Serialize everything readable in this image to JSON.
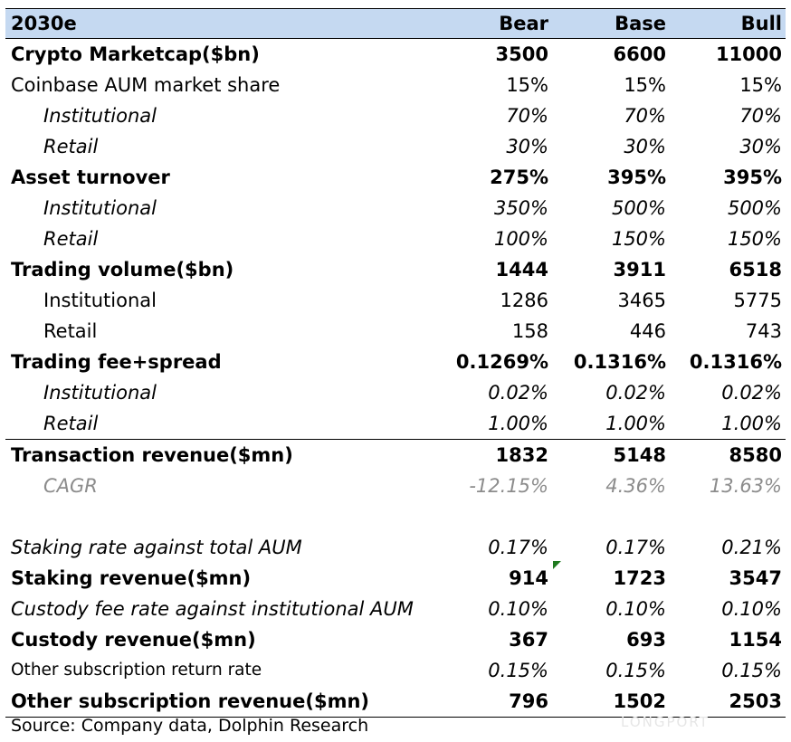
{
  "header": {
    "label": "2030e",
    "bear": "Bear",
    "base": "Base",
    "bull": "Bull"
  },
  "rows": [
    {
      "label": "Crypto Marketcap($bn)",
      "bear": "3500",
      "base": "6600",
      "bull": "11000"
    },
    {
      "label": "Coinbase AUM market share",
      "bear": "15%",
      "base": "15%",
      "bull": "15%"
    },
    {
      "label": "Institutional",
      "bear": "70%",
      "base": "70%",
      "bull": "70%"
    },
    {
      "label": "Retail",
      "bear": "30%",
      "base": "30%",
      "bull": "30%"
    },
    {
      "label": "Asset turnover",
      "bear": "275%",
      "base": "395%",
      "bull": "395%"
    },
    {
      "label": "Institutional",
      "bear": "350%",
      "base": "500%",
      "bull": "500%"
    },
    {
      "label": "Retail",
      "bear": "100%",
      "base": "150%",
      "bull": "150%"
    },
    {
      "label": "Trading volume($bn)",
      "bear": "1444",
      "base": "3911",
      "bull": "6518"
    },
    {
      "label": "Institutional",
      "bear": "1286",
      "base": "3465",
      "bull": "5775"
    },
    {
      "label": "Retail",
      "bear": "158",
      "base": "446",
      "bull": "743"
    },
    {
      "label": "Trading fee+spread",
      "bear": "0.1269%",
      "base": "0.1316%",
      "bull": "0.1316%"
    },
    {
      "label": "Institutional",
      "bear": "0.02%",
      "base": "0.02%",
      "bull": "0.02%"
    },
    {
      "label": "Retail",
      "bear": "1.00%",
      "base": "1.00%",
      "bull": "1.00%"
    },
    {
      "label": "Transaction revenue($mn)",
      "bear": "1832",
      "base": "5148",
      "bull": "8580"
    },
    {
      "label": "CAGR",
      "bear": "-12.15%",
      "base": "4.36%",
      "bull": "13.63%"
    },
    {
      "label": "Staking rate against total AUM",
      "bear": "0.17%",
      "base": "0.17%",
      "bull": "0.21%"
    },
    {
      "label": "Staking revenue($mn)",
      "bear": "914",
      "base": "1723",
      "bull": "3547"
    },
    {
      "label": "Custody fee rate against institutional AUM",
      "bear": "0.10%",
      "base": "0.10%",
      "bull": "0.10%"
    },
    {
      "label": "Custody revenue($mn)",
      "bear": "367",
      "base": "693",
      "bull": "1154"
    },
    {
      "label": "Other subscription return rate",
      "bear": "0.15%",
      "base": "0.15%",
      "bull": "0.15%"
    },
    {
      "label": "Other subscription revenue($mn)",
      "bear": "796",
      "base": "1502",
      "bull": "2503"
    }
  ],
  "source": "Source: Company data, Dolphin Research",
  "watermark": "LONGPORT",
  "colors": {
    "header_bg": "#c5d9f1",
    "cagr_text": "#8c8c8c",
    "comment_flag": "#1f7a1f"
  }
}
